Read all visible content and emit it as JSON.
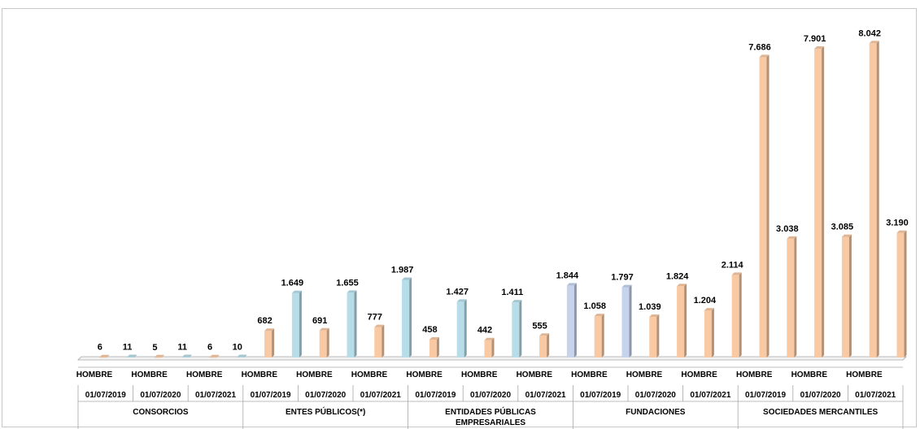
{
  "chart_data": {
    "type": "bar",
    "title": "",
    "xlabel": "",
    "ylabel": "",
    "ylim": [
      0,
      8500
    ],
    "grid": false,
    "legend": "none",
    "bar_label_level1": "HOMBRE",
    "categories": [
      "CONSORCIOS",
      "ENTES PÚBLICOS(*)",
      "ENTIDADES PÚBLICAS EMPRESARIALES",
      "FUNDACIONES",
      "SOCIEDADES MERCANTILES"
    ],
    "dates": [
      "01/07/2019",
      "01/07/2020",
      "01/07/2021"
    ],
    "groups": [
      {
        "category": "CONSORCIOS",
        "bars": [
          {
            "date": "01/07/2019",
            "value": 6,
            "label": "6",
            "color": "#f9c9a4"
          },
          {
            "date": "01/07/2019",
            "value": 11,
            "label": "11",
            "color": "#b7dde8"
          },
          {
            "date": "01/07/2020",
            "value": 5,
            "label": "5",
            "color": "#f9c9a4"
          },
          {
            "date": "01/07/2020",
            "value": 11,
            "label": "11",
            "color": "#b7dde8"
          },
          {
            "date": "01/07/2021",
            "value": 6,
            "label": "6",
            "color": "#f9c9a4"
          },
          {
            "date": "01/07/2021",
            "value": 10,
            "label": "10",
            "color": "#b7dde8"
          }
        ]
      },
      {
        "category": "ENTES PÚBLICOS(*)",
        "bars": [
          {
            "date": "01/07/2019",
            "value": 682,
            "label": "682",
            "color": "#f9c9a4"
          },
          {
            "date": "01/07/2019",
            "value": 1649,
            "label": "1.649",
            "color": "#b7dde8"
          },
          {
            "date": "01/07/2020",
            "value": 691,
            "label": "691",
            "color": "#f9c9a4"
          },
          {
            "date": "01/07/2020",
            "value": 1655,
            "label": "1.655",
            "color": "#b7dde8"
          },
          {
            "date": "01/07/2021",
            "value": 777,
            "label": "777",
            "color": "#f9c9a4"
          },
          {
            "date": "01/07/2021",
            "value": 1987,
            "label": "1.987",
            "color": "#b7dde8"
          }
        ]
      },
      {
        "category": "ENTIDADES PÚBLICAS EMPRESARIALES",
        "bars": [
          {
            "date": "01/07/2019",
            "value": 458,
            "label": "458",
            "color": "#f9c9a4"
          },
          {
            "date": "01/07/2019",
            "value": 1427,
            "label": "1.427",
            "color": "#b7dde8"
          },
          {
            "date": "01/07/2020",
            "value": 442,
            "label": "442",
            "color": "#f9c9a4"
          },
          {
            "date": "01/07/2020",
            "value": 1411,
            "label": "1.411",
            "color": "#b7dde8"
          },
          {
            "date": "01/07/2021",
            "value": 555,
            "label": "555",
            "color": "#f9c9a4"
          },
          {
            "date": "01/07/2021",
            "value": 1844,
            "label": "1.844",
            "color": "#c5d3ec"
          }
        ]
      },
      {
        "category": "FUNDACIONES",
        "bars": [
          {
            "date": "01/07/2019",
            "value": 1058,
            "label": "1.058",
            "color": "#f9c9a4"
          },
          {
            "date": "01/07/2019",
            "value": 1797,
            "label": "1.797",
            "color": "#c5d3ec"
          },
          {
            "date": "01/07/2020",
            "value": 1039,
            "label": "1.039",
            "color": "#f9c9a4"
          },
          {
            "date": "01/07/2020",
            "value": 1824,
            "label": "1.824",
            "color": "#f9c9a4"
          },
          {
            "date": "01/07/2021",
            "value": 1204,
            "label": "1.204",
            "color": "#f9c9a4"
          },
          {
            "date": "01/07/2021",
            "value": 2114,
            "label": "2.114",
            "color": "#f9c9a4"
          }
        ]
      },
      {
        "category": "SOCIEDADES MERCANTILES",
        "bars": [
          {
            "date": "01/07/2019",
            "value": 7686,
            "label": "7.686",
            "color": "#f9c9a4"
          },
          {
            "date": "01/07/2019",
            "value": 3038,
            "label": "3.038",
            "color": "#f9c9a4"
          },
          {
            "date": "01/07/2020",
            "value": 7901,
            "label": "7.901",
            "color": "#f9c9a4"
          },
          {
            "date": "01/07/2020",
            "value": 3085,
            "label": "3.085",
            "color": "#f9c9a4"
          },
          {
            "date": "01/07/2021",
            "value": 8042,
            "label": "8.042",
            "color": "#f9c9a4"
          },
          {
            "date": "01/07/2021",
            "value": 3190,
            "label": "3.190",
            "color": "#f9c9a4"
          }
        ]
      }
    ]
  }
}
